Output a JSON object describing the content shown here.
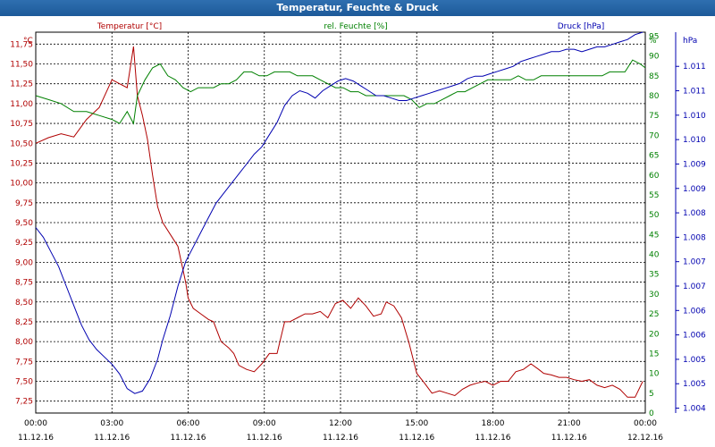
{
  "window": {
    "title": "Temperatur, Feuchte & Druck"
  },
  "colors": {
    "temperature": "#b00000",
    "humidity": "#008000",
    "pressure": "#0000b0",
    "grid": "#000000"
  },
  "chart_data": {
    "type": "line",
    "x_ticks": [
      {
        "time": "00:00",
        "date": "11.12.16"
      },
      {
        "time": "03:00",
        "date": "11.12.16"
      },
      {
        "time": "06:00",
        "date": "11.12.16"
      },
      {
        "time": "09:00",
        "date": "11.12.16"
      },
      {
        "time": "12:00",
        "date": "11.12.16"
      },
      {
        "time": "15:00",
        "date": "11.12.16"
      },
      {
        "time": "18:00",
        "date": "11.12.16"
      },
      {
        "time": "21:00",
        "date": "11.12.16"
      },
      {
        "time": "00:00",
        "date": "12.12.16"
      }
    ],
    "xlim": [
      0,
      24
    ],
    "axes": {
      "temperature": {
        "label": "Temperatur [°C]",
        "unit": "°C",
        "ylim": [
          7.1,
          11.9
        ],
        "ticks": [
          "11,75",
          "11,50",
          "11,25",
          "11,00",
          "10,75",
          "10,50",
          "10,25",
          "10,00",
          "9,75",
          "9,50",
          "9,25",
          "9,00",
          "8,75",
          "8,50",
          "8,25",
          "8,00",
          "7,75",
          "7,50",
          "7,25"
        ],
        "tick_values": [
          11.75,
          11.5,
          11.25,
          11.0,
          10.75,
          10.5,
          10.25,
          10.0,
          9.75,
          9.5,
          9.25,
          9.0,
          8.75,
          8.5,
          8.25,
          8.0,
          7.75,
          7.5,
          7.25
        ]
      },
      "humidity": {
        "label": "rel. Feuchte [%]",
        "unit": "%",
        "ylim": [
          0,
          96
        ],
        "ticks": [
          "95",
          "90",
          "85",
          "80",
          "75",
          "70",
          "65",
          "60",
          "55",
          "50",
          "45",
          "40",
          "35",
          "30",
          "25",
          "20",
          "15",
          "10",
          "5",
          "0"
        ],
        "tick_values": [
          95,
          90,
          85,
          80,
          75,
          70,
          65,
          60,
          55,
          50,
          45,
          40,
          35,
          30,
          25,
          20,
          15,
          10,
          5,
          0
        ]
      },
      "pressure": {
        "label": "Druck [hPa]",
        "unit": "hPa",
        "ylim": [
          1003.9,
          1011.7
        ],
        "ticks": [
          "1.011",
          "1.011",
          "1.010",
          "1.010",
          "1.009",
          "1.009",
          "1.008",
          "1.008",
          "1.007",
          "1.007",
          "1.006",
          "1.006",
          "1.005",
          "1.005",
          "1.004"
        ],
        "tick_values": [
          1011.0,
          1010.5,
          1010.0,
          1009.5,
          1009.0,
          1008.5,
          1008.0,
          1007.5,
          1007.0,
          1006.5,
          1006.0,
          1005.5,
          1005.0,
          1004.5,
          1004.0
        ]
      }
    },
    "series": [
      {
        "name": "Temperatur [°C]",
        "axis": "temperature",
        "x": [
          0,
          0.5,
          1.0,
          1.5,
          2.0,
          2.5,
          3.0,
          3.3,
          3.6,
          3.85,
          4.0,
          4.2,
          4.4,
          4.6,
          4.8,
          5.0,
          5.3,
          5.6,
          5.9,
          6.0,
          6.2,
          6.5,
          6.8,
          7.0,
          7.3,
          7.6,
          7.8,
          8.0,
          8.3,
          8.6,
          8.9,
          9.2,
          9.5,
          9.8,
          10.0,
          10.3,
          10.6,
          10.9,
          11.2,
          11.5,
          11.8,
          12.1,
          12.4,
          12.7,
          13.0,
          13.3,
          13.6,
          13.8,
          14.1,
          14.4,
          14.7,
          15.0,
          15.3,
          15.6,
          15.9,
          16.2,
          16.5,
          16.8,
          17.1,
          17.4,
          17.7,
          18.0,
          18.3,
          18.6,
          18.9,
          19.2,
          19.5,
          19.8,
          20.0,
          20.3,
          20.6,
          20.9,
          21.2,
          21.5,
          21.8,
          22.1,
          22.4,
          22.7,
          23.0,
          23.3,
          23.6,
          23.9
        ],
        "y": [
          10.5,
          10.57,
          10.62,
          10.58,
          10.8,
          10.95,
          11.3,
          11.25,
          11.2,
          11.72,
          11.1,
          10.85,
          10.55,
          10.1,
          9.7,
          9.5,
          9.35,
          9.2,
          8.75,
          8.55,
          8.42,
          8.35,
          8.28,
          8.25,
          8.0,
          7.92,
          7.85,
          7.7,
          7.65,
          7.62,
          7.72,
          7.85,
          7.85,
          8.25,
          8.25,
          8.3,
          8.35,
          8.35,
          8.38,
          8.3,
          8.48,
          8.52,
          8.42,
          8.55,
          8.45,
          8.32,
          8.35,
          8.5,
          8.45,
          8.3,
          7.98,
          7.6,
          7.48,
          7.35,
          7.38,
          7.35,
          7.32,
          7.4,
          7.45,
          7.48,
          7.5,
          7.45,
          7.5,
          7.5,
          7.62,
          7.65,
          7.72,
          7.65,
          7.6,
          7.58,
          7.55,
          7.55,
          7.52,
          7.5,
          7.52,
          7.45,
          7.42,
          7.45,
          7.4,
          7.3,
          7.3,
          7.5
        ]
      },
      {
        "name": "rel. Feuchte [%]",
        "axis": "humidity",
        "x": [
          0,
          0.5,
          1.0,
          1.5,
          2.0,
          2.5,
          3.0,
          3.3,
          3.6,
          3.85,
          4.0,
          4.3,
          4.6,
          4.9,
          5.2,
          5.5,
          5.8,
          6.1,
          6.4,
          6.7,
          7.0,
          7.3,
          7.6,
          7.9,
          8.2,
          8.5,
          8.8,
          9.1,
          9.4,
          9.7,
          10.0,
          10.3,
          10.6,
          10.9,
          11.2,
          11.5,
          11.8,
          12.1,
          12.4,
          12.7,
          13.0,
          13.3,
          13.6,
          13.9,
          14.2,
          14.5,
          14.8,
          15.1,
          15.4,
          15.7,
          16.0,
          16.3,
          16.6,
          16.9,
          17.2,
          17.5,
          17.8,
          18.1,
          18.4,
          18.7,
          19.0,
          19.3,
          19.6,
          19.9,
          20.2,
          20.5,
          20.8,
          21.1,
          21.4,
          21.7,
          22.0,
          22.3,
          22.6,
          22.9,
          23.2,
          23.5,
          23.8,
          24.0
        ],
        "y": [
          80,
          79,
          78,
          76,
          76,
          75,
          74,
          73,
          76,
          73,
          80,
          84,
          87,
          88,
          85,
          84,
          82,
          81,
          82,
          82,
          82,
          83,
          83,
          84,
          86,
          86,
          85,
          85,
          86,
          86,
          86,
          85,
          85,
          85,
          84,
          83,
          82,
          82,
          81,
          81,
          80,
          80,
          80,
          80,
          80,
          80,
          79,
          77,
          78,
          78,
          79,
          80,
          81,
          81,
          82,
          83,
          84,
          84,
          84,
          84,
          85,
          84,
          84,
          85,
          85,
          85,
          85,
          85,
          85,
          85,
          85,
          85,
          86,
          86,
          86,
          89,
          88,
          87
        ]
      },
      {
        "name": "Druck [hPa]",
        "axis": "pressure",
        "x": [
          0,
          0.3,
          0.6,
          0.9,
          1.2,
          1.5,
          1.8,
          2.1,
          2.4,
          2.7,
          3.0,
          3.3,
          3.6,
          3.9,
          4.2,
          4.5,
          4.8,
          5.0,
          5.3,
          5.6,
          5.9,
          6.2,
          6.5,
          6.8,
          7.1,
          7.4,
          7.7,
          8.0,
          8.3,
          8.6,
          8.9,
          9.2,
          9.5,
          9.8,
          10.1,
          10.4,
          10.7,
          11.0,
          11.3,
          11.6,
          11.9,
          12.2,
          12.5,
          12.8,
          13.1,
          13.4,
          13.7,
          14.0,
          14.3,
          14.6,
          14.9,
          15.2,
          15.5,
          15.8,
          16.1,
          16.4,
          16.7,
          17.0,
          17.3,
          17.6,
          17.9,
          18.2,
          18.5,
          18.8,
          19.1,
          19.4,
          19.7,
          20.0,
          20.3,
          20.6,
          20.9,
          21.2,
          21.5,
          21.8,
          22.1,
          22.4,
          22.7,
          23.0,
          23.3,
          23.6,
          23.9
        ],
        "y": [
          1007.7,
          1007.5,
          1007.2,
          1006.9,
          1006.5,
          1006.1,
          1005.7,
          1005.4,
          1005.2,
          1005.05,
          1004.9,
          1004.7,
          1004.4,
          1004.3,
          1004.35,
          1004.6,
          1005.0,
          1005.4,
          1005.9,
          1006.5,
          1007.0,
          1007.3,
          1007.6,
          1007.9,
          1008.2,
          1008.4,
          1008.6,
          1008.8,
          1009.0,
          1009.2,
          1009.35,
          1009.6,
          1009.85,
          1010.2,
          1010.4,
          1010.5,
          1010.45,
          1010.35,
          1010.5,
          1010.6,
          1010.7,
          1010.75,
          1010.7,
          1010.6,
          1010.5,
          1010.4,
          1010.4,
          1010.35,
          1010.3,
          1010.3,
          1010.35,
          1010.4,
          1010.45,
          1010.5,
          1010.55,
          1010.6,
          1010.65,
          1010.75,
          1010.8,
          1010.8,
          1010.85,
          1010.9,
          1010.95,
          1011.0,
          1011.1,
          1011.15,
          1011.2,
          1011.25,
          1011.3,
          1011.3,
          1011.35,
          1011.35,
          1011.3,
          1011.35,
          1011.4,
          1011.4,
          1011.45,
          1011.5,
          1011.55,
          1011.65,
          1011.7
        ]
      }
    ],
    "grid": true
  }
}
